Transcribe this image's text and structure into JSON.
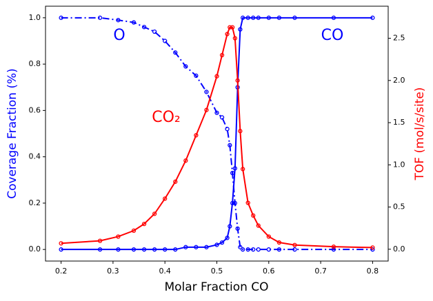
{
  "chart_data": {
    "type": "line",
    "xlabel": "Molar Fraction CO",
    "ylabel": "Coverage Fraction (%)",
    "y2label": "TOF (mol/s/site)",
    "ylabel_color": "#0000ff",
    "y2label_color": "#ff0000",
    "annotations": [
      "O",
      "CO",
      "CO₂"
    ],
    "annotation_colors": [
      "#0000ff",
      "#0000ff",
      "#ff0000"
    ],
    "x": [
      0.2,
      0.275,
      0.31,
      0.34,
      0.36,
      0.38,
      0.4,
      0.42,
      0.44,
      0.46,
      0.48,
      0.5,
      0.51,
      0.52,
      0.525,
      0.53,
      0.535,
      0.54,
      0.545,
      0.55,
      0.56,
      0.57,
      0.58,
      0.6,
      0.62,
      0.65,
      0.725,
      0.8
    ],
    "series": [
      {
        "color": "#0000ff",
        "linestyle": "dashdot",
        "axis": "y",
        "values": [
          1,
          1,
          0.99,
          0.98,
          0.96,
          0.94,
          0.9,
          0.85,
          0.79,
          0.75,
          0.68,
          0.59,
          0.57,
          0.52,
          0.45,
          0.33,
          0.2,
          0.09,
          0.01,
          0,
          0,
          0,
          0,
          0,
          0,
          0,
          0,
          0
        ]
      },
      {
        "color": "#0000ff",
        "linestyle": "solid",
        "axis": "y",
        "values": [
          0,
          0,
          0,
          0,
          0,
          0,
          0,
          0,
          0.01,
          0.01,
          0.01,
          0.02,
          0.03,
          0.05,
          0.1,
          0.2,
          0.35,
          0.7,
          0.95,
          1,
          1,
          1,
          1,
          1,
          1,
          1,
          1,
          1
        ]
      },
      {
        "color": "#ff0000",
        "linestyle": "solid",
        "axis": "y2",
        "values": [
          0.07,
          0.1,
          0.15,
          0.22,
          0.3,
          0.42,
          0.6,
          0.8,
          1.05,
          1.35,
          1.65,
          2.05,
          2.3,
          2.55,
          2.63,
          2.63,
          2.5,
          2.0,
          1.4,
          0.95,
          0.55,
          0.4,
          0.28,
          0.15,
          0.08,
          0.05,
          0.03,
          0.02
        ]
      }
    ],
    "xlim": [
      0.17,
      0.83
    ],
    "xticks": [
      0.2,
      0.3,
      0.4,
      0.5,
      0.6,
      0.7,
      0.8
    ],
    "ylim": [
      -0.05,
      1.05
    ],
    "yticks": [
      {
        "value": 0,
        "label": "0.0"
      },
      0.2,
      0.4,
      0.6,
      0.8,
      {
        "value": 1,
        "label": "1.0"
      }
    ],
    "y2lim": [
      -0.14,
      2.88
    ],
    "y2ticks": [
      {
        "value": 0,
        "label": "0.0"
      },
      0.5,
      {
        "value": 1,
        "label": "1.0"
      },
      1.5,
      {
        "value": 2,
        "label": "2.0"
      },
      2.5
    ]
  }
}
